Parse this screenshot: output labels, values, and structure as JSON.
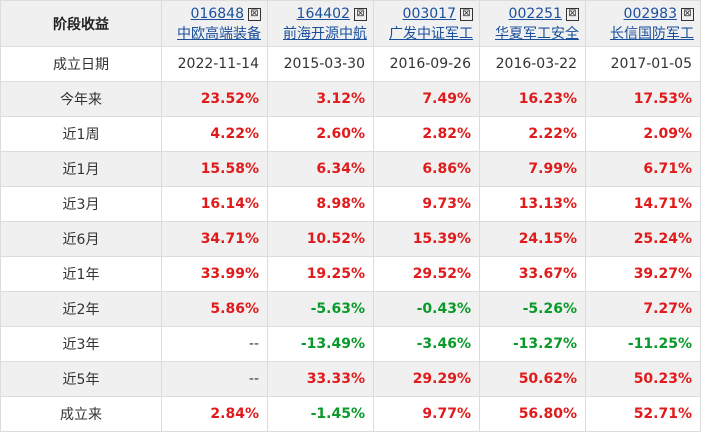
{
  "header_label": "阶段收益",
  "funds": [
    {
      "code": "016848",
      "name": "中欧高端装备"
    },
    {
      "code": "164402",
      "name": "前海开源中航"
    },
    {
      "code": "003017",
      "name": "广发中证军工"
    },
    {
      "code": "002251",
      "name": "华夏军工安全"
    },
    {
      "code": "002983",
      "name": "长信国防军工"
    }
  ],
  "inception_row": {
    "label": "成立日期",
    "dates": [
      "2022-11-14",
      "2015-03-30",
      "2016-09-26",
      "2016-03-22",
      "2017-01-05"
    ]
  },
  "rows": [
    {
      "label": "今年来",
      "values": [
        "23.52%",
        "3.12%",
        "7.49%",
        "16.23%",
        "17.53%"
      ]
    },
    {
      "label": "近1周",
      "values": [
        "4.22%",
        "2.60%",
        "2.82%",
        "2.22%",
        "2.09%"
      ]
    },
    {
      "label": "近1月",
      "values": [
        "15.58%",
        "6.34%",
        "6.86%",
        "7.99%",
        "6.71%"
      ]
    },
    {
      "label": "近3月",
      "values": [
        "16.14%",
        "8.98%",
        "9.73%",
        "13.13%",
        "14.71%"
      ]
    },
    {
      "label": "近6月",
      "values": [
        "34.71%",
        "10.52%",
        "15.39%",
        "24.15%",
        "25.24%"
      ]
    },
    {
      "label": "近1年",
      "values": [
        "33.99%",
        "19.25%",
        "29.52%",
        "33.67%",
        "39.27%"
      ]
    },
    {
      "label": "近2年",
      "values": [
        "5.86%",
        "-5.63%",
        "-0.43%",
        "-5.26%",
        "7.27%"
      ]
    },
    {
      "label": "近3年",
      "values": [
        "--",
        "-13.49%",
        "-3.46%",
        "-13.27%",
        "-11.25%"
      ]
    },
    {
      "label": "近5年",
      "values": [
        "--",
        "33.33%",
        "29.29%",
        "50.62%",
        "50.23%"
      ]
    },
    {
      "label": "成立来",
      "values": [
        "2.84%",
        "-1.45%",
        "9.77%",
        "56.80%",
        "52.71%"
      ]
    }
  ],
  "remove_glyph": "⊠",
  "colors": {
    "positive": "#e11b1b",
    "negative": "#0a9a2a",
    "link": "#1a4f9c"
  }
}
